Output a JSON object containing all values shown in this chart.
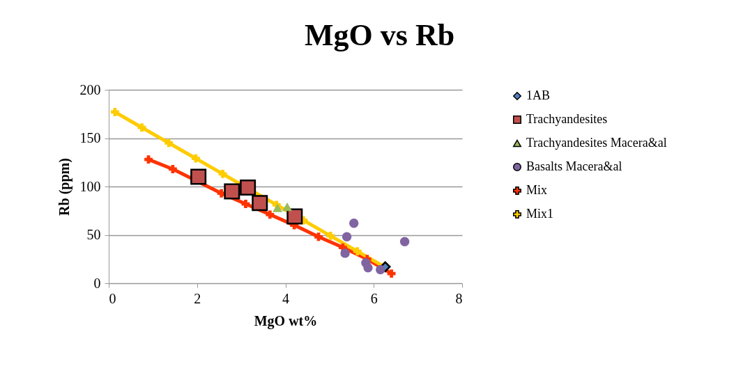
{
  "chart_data": {
    "type": "scatter",
    "title": "MgO vs Rb",
    "xlabel": "MgO wt%",
    "ylabel": "Rb (ppm)",
    "xlim": [
      0,
      8
    ],
    "xticks": [
      0,
      2,
      4,
      6,
      8
    ],
    "ylim": [
      0,
      200
    ],
    "yticks": [
      0,
      50,
      100,
      150,
      200
    ],
    "grid": "y",
    "legend": "right",
    "series": [
      {
        "name": "1AB",
        "type": "scatter",
        "marker": "diamond",
        "color": "#4f81bd",
        "x": [
          6.26
        ],
        "values": [
          17
        ]
      },
      {
        "name": "Trachyandesites",
        "type": "scatter",
        "marker": "square",
        "color": "#c0504d",
        "x": [
          2.03,
          2.79,
          3.15,
          3.42,
          4.21
        ],
        "values": [
          110,
          95,
          99,
          83,
          69
        ]
      },
      {
        "name": "Trachyandesites Macera&al",
        "type": "scatter",
        "marker": "triangle",
        "color": "#9bbb59",
        "x": [
          3.82,
          4.04
        ],
        "values": [
          78,
          79
        ]
      },
      {
        "name": "Basalts Macera&al",
        "type": "scatter",
        "marker": "circle",
        "color": "#8064a2",
        "x": [
          5.55,
          5.39,
          5.35,
          5.82,
          5.87,
          6.15,
          6.7
        ],
        "values": [
          62,
          48,
          31,
          21,
          16,
          14,
          43
        ]
      },
      {
        "name": "Mix",
        "type": "line",
        "marker": "cross",
        "color": "#ff3300",
        "x": [
          0.9,
          1.45,
          2.55,
          3.1,
          3.65,
          4.2,
          4.75,
          5.3,
          5.85,
          6.4
        ],
        "values": [
          128,
          118,
          93,
          82,
          71,
          60,
          48,
          37,
          25,
          10
        ]
      },
      {
        "name": "Mix1",
        "type": "line",
        "marker": "cross",
        "color": "#ffcc00",
        "x": [
          0.14,
          0.75,
          1.36,
          1.97,
          2.58,
          3.8,
          4.41,
          5.02,
          5.63,
          6.24
        ],
        "values": [
          177,
          161,
          145,
          129,
          113,
          81,
          65,
          49,
          33,
          17
        ]
      }
    ]
  }
}
